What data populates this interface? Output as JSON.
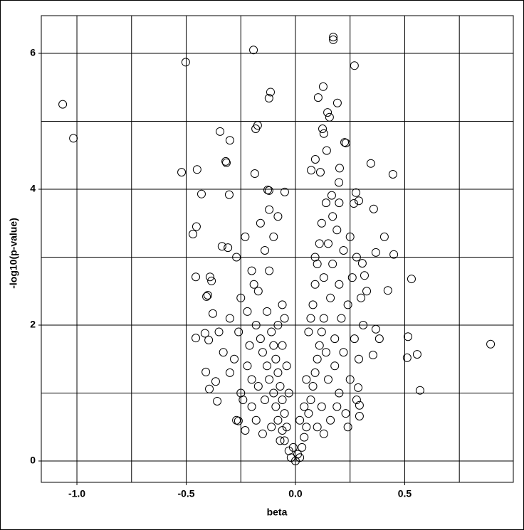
{
  "chart_data": {
    "type": "scatter",
    "x_label": "beta",
    "y_label": "-log10(p-value)",
    "xlim": [
      -1.163,
      0.997
    ],
    "ylim": [
      -0.314,
      6.555
    ],
    "xticks": [
      {
        "value": -1,
        "label": "-1.0"
      },
      {
        "value": -0.5,
        "label": "-0.5"
      },
      {
        "value": 0,
        "label": "0.0"
      },
      {
        "value": 0.5,
        "label": "0.5"
      }
    ],
    "yticks": [
      0,
      2,
      4,
      6
    ],
    "xgrid": [
      -1,
      -0.75,
      -0.5,
      -0.25,
      0,
      0.25,
      0.5,
      0.75
    ],
    "ygrid": [
      0,
      1,
      2,
      3,
      4,
      5,
      6
    ],
    "grid": true,
    "color": "#000000",
    "marker": "open-circle",
    "x": [
      -1.065,
      -1.016,
      -0.502,
      -0.192,
      0.173,
      0.173,
      0.27,
      -0.114,
      -0.121,
      0.127,
      0.104,
      0.192,
      0.147,
      0.156,
      -0.173,
      -0.182,
      -0.345,
      -0.3,
      0.124,
      0.13,
      0.225,
      0.231,
      0.143,
      -0.319,
      -0.316,
      -0.521,
      -0.45,
      -0.186,
      0.091,
      0.072,
      0.114,
      0.345,
      0.446,
      0.202,
      -0.127,
      -0.121,
      -0.43,
      -0.303,
      -0.049,
      -0.453,
      -0.469,
      -0.336,
      -0.309,
      -0.456,
      -0.391,
      -0.384,
      -0.401,
      -0.407,
      -0.378,
      -0.414,
      -0.456,
      -0.397,
      -0.41,
      -0.394,
      -0.365,
      -0.358,
      -0.261,
      0.358,
      0.407,
      0.368,
      0.45,
      0.423,
      0.531,
      0.368,
      0.384,
      0.355,
      0.515,
      0.511,
      0.557,
      0.57,
      0.893,
      0.306,
      0.316,
      0.326,
      0.29,
      0.277,
      0.267,
      0.199,
      0.166,
      0.293,
      0.293,
      0.287,
      -0.02,
      -0.03,
      -0.05,
      -0.06,
      -0.08,
      -0.09,
      -0.1,
      -0.12,
      -0.13,
      -0.15,
      -0.16,
      -0.18,
      -0.04,
      -0.05,
      -0.06,
      -0.07,
      -0.08,
      -0.09,
      -0.1,
      -0.11,
      -0.05,
      -0.06,
      -0.2,
      -0.22,
      -0.25,
      -0.28,
      -0.18,
      -0.15,
      -0.2,
      -0.24,
      -0.3,
      -0.33,
      -0.26,
      -0.22,
      -0.17,
      -0.12,
      -0.14,
      -0.1,
      -0.08,
      -0.2,
      -0.25,
      -0.3,
      -0.35,
      -0.16,
      -0.12,
      -0.23,
      -0.27,
      -0.19,
      -0.13,
      -0.11,
      -0.14,
      -0.17,
      -0.21,
      -0.07,
      -0.03,
      -0.04,
      -0.06,
      -0.08,
      -0.27,
      -0.23,
      0.02,
      0.03,
      0.04,
      0.05,
      0.06,
      0.07,
      0.08,
      0.09,
      0.1,
      0.11,
      0.12,
      0.13,
      0.08,
      0.09,
      0.1,
      0.11,
      0.12,
      0.14,
      0.06,
      0.07,
      0.15,
      0.18,
      0.2,
      0.22,
      0.25,
      0.27,
      0.16,
      0.13,
      0.19,
      0.23,
      0.29,
      0.31,
      0.24,
      0.2,
      0.17,
      0.15,
      0.19,
      0.22,
      0.26,
      0.3,
      0.13,
      0.16,
      0.21,
      0.18,
      0.14,
      0.1,
      0.12,
      0.05,
      0.04,
      0.28,
      0.24,
      0.17,
      0.2,
      0.25,
      0.28,
      0.09,
      0.02,
      -0.01,
      0,
      0.01
    ],
    "values": [
      5.25,
      4.75,
      5.87,
      6.05,
      6.24,
      6.2,
      5.82,
      5.43,
      5.34,
      5.51,
      5.35,
      5.27,
      5.13,
      5.06,
      4.94,
      4.89,
      4.85,
      4.72,
      4.89,
      4.82,
      4.69,
      4.68,
      4.57,
      4.41,
      4.39,
      4.25,
      4.29,
      4.23,
      4.44,
      4.28,
      4.25,
      4.38,
      4.22,
      4.31,
      3.99,
      3.98,
      3.93,
      3.92,
      3.96,
      3.45,
      3.34,
      3.16,
      3.14,
      2.71,
      2.71,
      2.65,
      2.44,
      2.42,
      2.17,
      1.88,
      1.81,
      1.78,
      1.31,
      1.06,
      1.17,
      0.88,
      0.59,
      3.71,
      3.3,
      3.07,
      3.04,
      2.51,
      2.68,
      1.94,
      1.8,
      1.56,
      1.83,
      1.52,
      1.57,
      1.04,
      1.72,
      2.91,
      2.73,
      2.5,
      3.83,
      3.95,
      3.79,
      4.1,
      3.91,
      0.82,
      0.66,
      1.08,
      0.05,
      0.15,
      0.3,
      0.45,
      0.6,
      0.8,
      1.0,
      1.2,
      1.4,
      1.6,
      1.8,
      2.0,
      0.5,
      0.7,
      0.9,
      1.1,
      1.3,
      1.5,
      1.7,
      1.9,
      2.1,
      2.3,
      1.2,
      1.4,
      1.0,
      1.5,
      0.6,
      0.4,
      0.8,
      0.9,
      1.3,
      1.6,
      1.9,
      2.2,
      2.5,
      2.8,
      3.1,
      3.3,
      3.6,
      2.8,
      2.4,
      2.1,
      1.9,
      3.5,
      3.7,
      3.3,
      3.0,
      2.6,
      2.2,
      0.5,
      0.9,
      1.1,
      1.7,
      0.3,
      1.0,
      1.4,
      1.7,
      2.0,
      0.6,
      0.45,
      0.05,
      0.2,
      0.35,
      0.5,
      0.7,
      0.9,
      1.1,
      1.3,
      1.5,
      1.7,
      1.9,
      2.1,
      2.3,
      2.6,
      2.9,
      3.2,
      3.5,
      3.8,
      1.9,
      2.1,
      1.2,
      1.4,
      1.0,
      1.6,
      1.2,
      1.8,
      0.6,
      0.4,
      0.8,
      0.7,
      1.5,
      2.0,
      2.3,
      2.6,
      2.9,
      3.2,
      3.4,
      3.1,
      2.7,
      2.4,
      2.7,
      2.4,
      2.1,
      1.8,
      1.6,
      0.5,
      0.8,
      1.2,
      0.8,
      0.9,
      0.5,
      3.6,
      3.8,
      3.3,
      3.0,
      3.0,
      0.6,
      0.2,
      0,
      0.1
    ]
  }
}
